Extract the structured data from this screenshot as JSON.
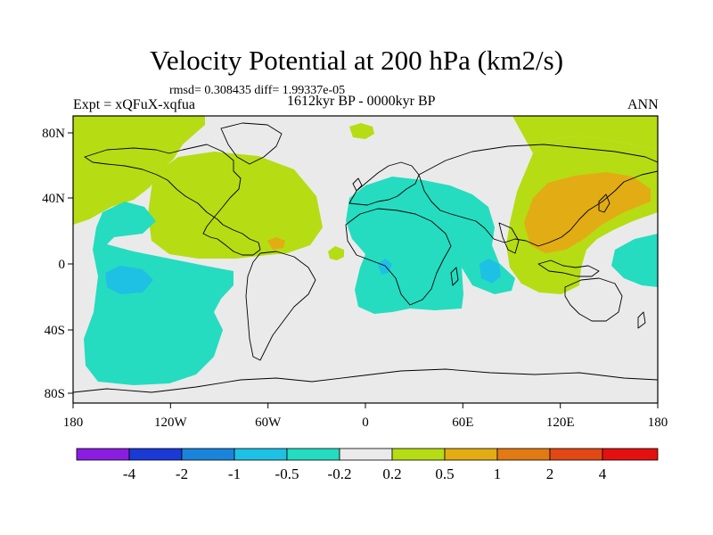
{
  "title": "Velocity Potential at 200 hPa (km2/s)",
  "stats": "rmsd= 0.308435 diff= 1.99337e-05",
  "expt": "Expt = xQFuX-xqfua",
  "period": "1612kyr BP - 0000kyr BP",
  "season": "ANN",
  "lon_ticks": [
    "180",
    "120W",
    "60W",
    "0",
    "60E",
    "120E",
    "180"
  ],
  "lat_ticks": [
    "80N",
    "40N",
    "0",
    "40S",
    "80S"
  ],
  "colorbar": {
    "colors": [
      "#8a1ee0",
      "#1a3ad6",
      "#1a84dc",
      "#1ec0e4",
      "#25dcc0",
      "#eaeaea",
      "#b6dc14",
      "#e2ac14",
      "#e27a14",
      "#e24814",
      "#e41010"
    ],
    "labels": [
      "-4",
      "-2",
      "-1",
      "-0.5",
      "-0.2",
      "0.2",
      "0.5",
      "1",
      "2",
      "4"
    ]
  },
  "field_colors": {
    "background": "#eaeaea",
    "neg_0_2": "#25dcc0",
    "neg_0_5": "#1ec0e4",
    "pos_0_2": "#b6dc14",
    "pos_0_5": "#e2ac14",
    "pos_1": "#e27a14"
  }
}
